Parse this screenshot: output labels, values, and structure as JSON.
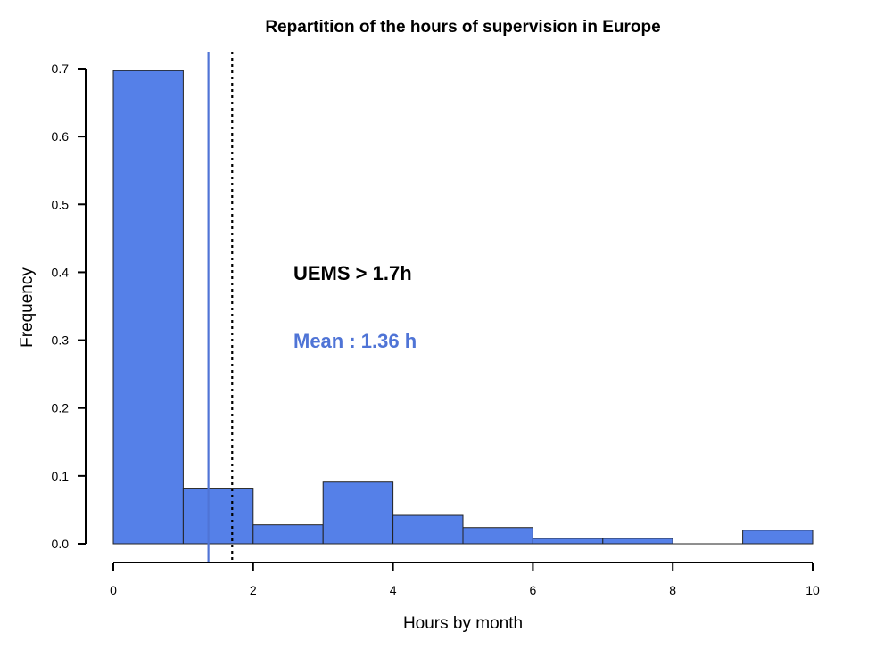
{
  "chart_data": {
    "type": "bar",
    "title": "Repartition of the hours of supervision in Europe",
    "xlabel": "Hours by month",
    "ylabel": "Frequency",
    "xlim": [
      0,
      10
    ],
    "ylim": [
      0,
      0.7
    ],
    "x_ticks": [
      "0",
      "2",
      "4",
      "6",
      "8",
      "10"
    ],
    "y_ticks": [
      "0.0",
      "0.1",
      "0.2",
      "0.3",
      "0.4",
      "0.5",
      "0.6",
      "0.7"
    ],
    "bins": [
      {
        "start": 0,
        "end": 1,
        "value": 0.697
      },
      {
        "start": 1,
        "end": 2,
        "value": 0.082
      },
      {
        "start": 2,
        "end": 3,
        "value": 0.028
      },
      {
        "start": 3,
        "end": 4,
        "value": 0.091
      },
      {
        "start": 4,
        "end": 5,
        "value": 0.042
      },
      {
        "start": 5,
        "end": 6,
        "value": 0.024
      },
      {
        "start": 6,
        "end": 7,
        "value": 0.008
      },
      {
        "start": 7,
        "end": 8,
        "value": 0.008
      },
      {
        "start": 8,
        "end": 9,
        "value": 0.0
      },
      {
        "start": 9,
        "end": 10,
        "value": 0.02
      }
    ],
    "reference_lines": [
      {
        "x": 1.36,
        "style": "solid",
        "color": "#4f74d6"
      },
      {
        "x": 1.7,
        "style": "dotted",
        "color": "#000000"
      }
    ],
    "annotations": [
      {
        "text": "UEMS > 1.7h",
        "color": "#000000"
      },
      {
        "text": "Mean : 1.36 h",
        "color": "#4f74d6"
      }
    ],
    "bar_color": "#5580e8",
    "grid": false,
    "legend": "none"
  }
}
